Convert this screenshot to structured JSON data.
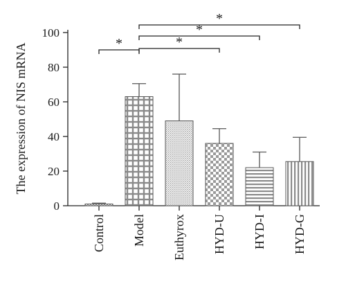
{
  "chart_data": {
    "type": "bar",
    "title": "",
    "xlabel": "",
    "ylabel": "The expression of NIS mRNA",
    "ylim": [
      0,
      100
    ],
    "yticks": [
      0,
      20,
      40,
      60,
      80,
      100
    ],
    "categories": [
      "Control",
      "Model",
      "Euthyrox",
      "HYD-U",
      "HYD-I",
      "HYD-G"
    ],
    "values": [
      1,
      63,
      49,
      36,
      22,
      25.5
    ],
    "error_upper": [
      1.5,
      70.5,
      76,
      44.5,
      31,
      39.5
    ],
    "patterns": [
      "dense-dots",
      "grid-squares",
      "fine-dots",
      "checker",
      "horizontal-stripes",
      "vertical-stripes"
    ],
    "significance": [
      {
        "from": "Control",
        "to": "Model",
        "label": "*"
      },
      {
        "from": "Model",
        "to": "HYD-U",
        "label": "*"
      },
      {
        "from": "Model",
        "to": "HYD-I",
        "label": "*"
      },
      {
        "from": "Model",
        "to": "HYD-G",
        "label": "*"
      }
    ]
  }
}
